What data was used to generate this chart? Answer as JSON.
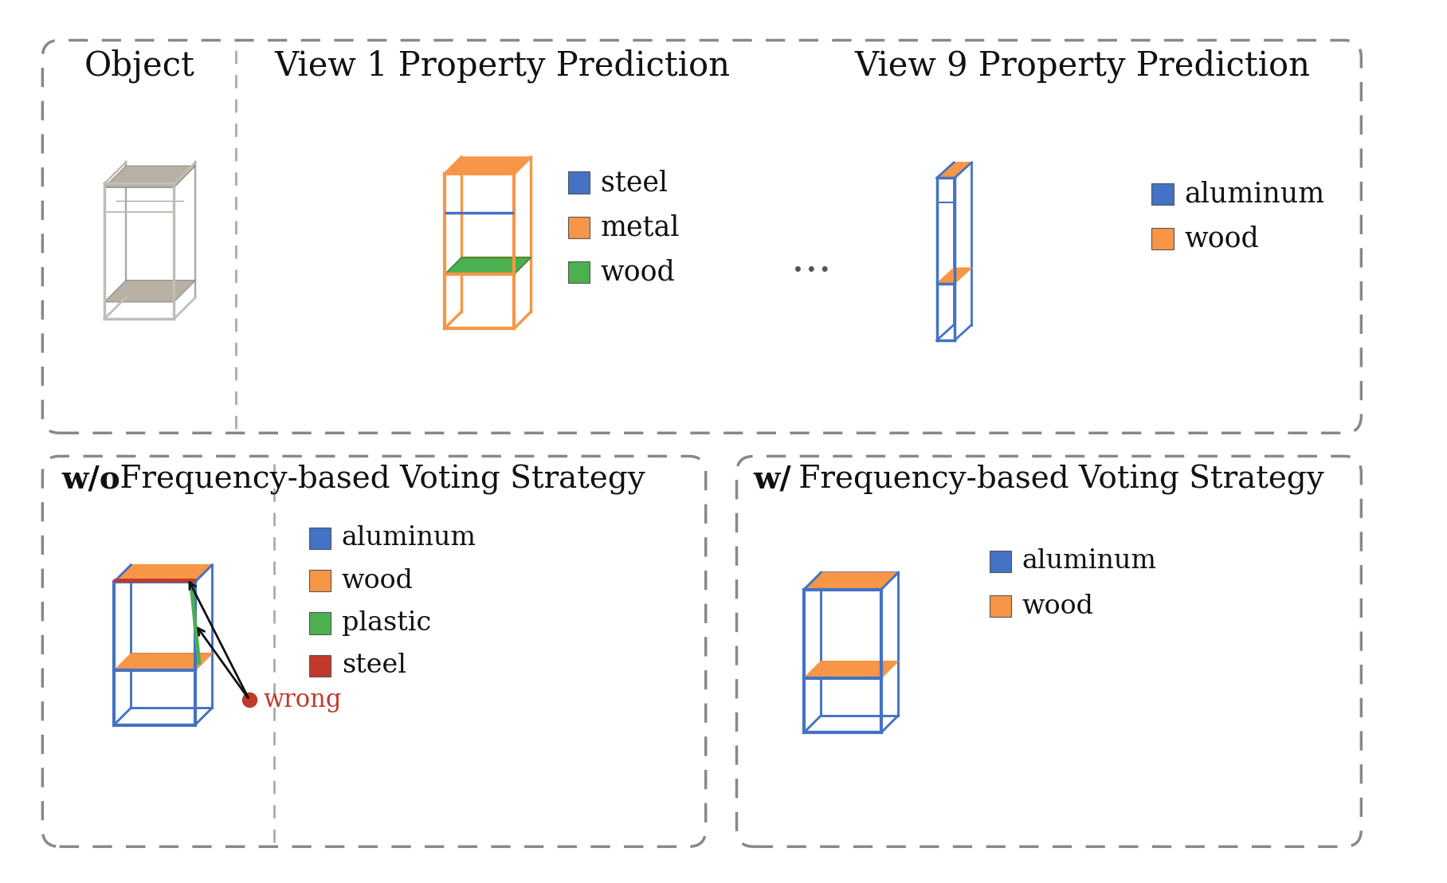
{
  "bg_color": "#ffffff",
  "panel1_title": "Object",
  "panel2_title": "View 1 Property Prediction",
  "panel3_title": "View 9 Property Prediction",
  "panel4_title_bold": "w/o",
  "panel4_title_rest": " Frequency-based Voting Strategy",
  "panel5_title_bold": "w/",
  "panel5_title_rest": " Frequency-based Voting Strategy",
  "legend1_items": [
    [
      "steel",
      "#4472c4"
    ],
    [
      "metal",
      "#f79646"
    ],
    [
      "wood",
      "#4caf50"
    ]
  ],
  "legend2_items": [
    [
      "aluminum",
      "#4472c4"
    ],
    [
      "wood",
      "#f79646"
    ]
  ],
  "legend3_items": [
    [
      "aluminum",
      "#4472c4"
    ],
    [
      "wood",
      "#f79646"
    ],
    [
      "plastic",
      "#4caf50"
    ],
    [
      "steel",
      "#c0392b"
    ]
  ],
  "legend4_items": [
    [
      "aluminum",
      "#4472c4"
    ],
    [
      "wood",
      "#f79646"
    ]
  ],
  "dots": "...",
  "wrong_color": "#c0392b",
  "orange": "#f79646",
  "blue": "#4472c4",
  "green": "#4caf50",
  "red": "#c0392b",
  "gray_frame": "#c0bdb8",
  "gray_shelf": "#b8b0a4",
  "dashed_color": "#888888"
}
